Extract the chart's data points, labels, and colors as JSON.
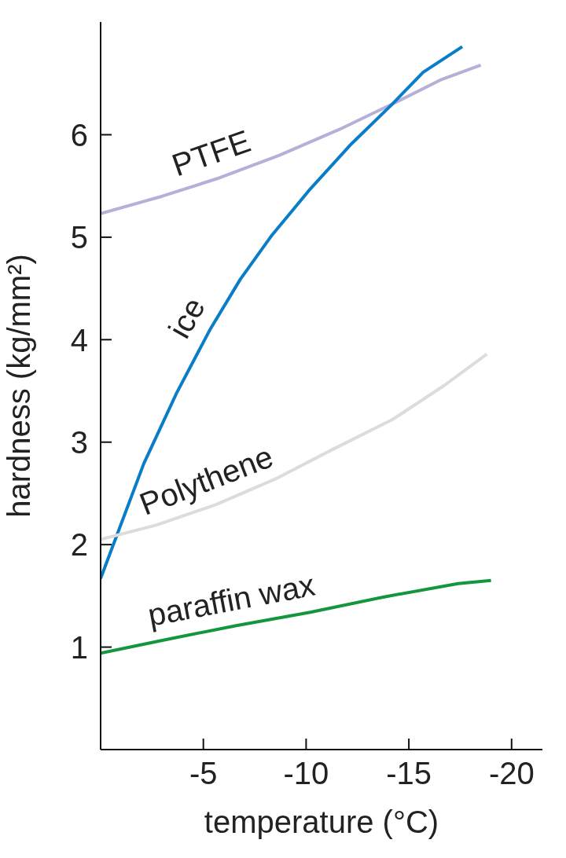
{
  "chart_data": {
    "type": "line",
    "xlabel": "temperature (°C)",
    "ylabel": "hardness (kg/mm²)",
    "xlim": [
      0,
      -21.5
    ],
    "xticks": [
      -5,
      -10,
      -15,
      -20
    ],
    "ylim": [
      0,
      7.1
    ],
    "yticks": [
      1,
      2,
      3,
      4,
      5,
      6
    ],
    "grid": false,
    "legend": false,
    "marker": "none",
    "line_style": "solid",
    "series": [
      {
        "name": "PTFE",
        "color": "#b4b0d8",
        "x": [
          0,
          -3,
          -5.8,
          -8.7,
          -11.6,
          -14.4,
          -16.6,
          -18.5
        ],
        "values": [
          5.23,
          5.4,
          5.58,
          5.8,
          6.05,
          6.32,
          6.54,
          6.68
        ]
      },
      {
        "name": "ice",
        "color": "#0a7dc8",
        "x": [
          0,
          -2.1,
          -3.7,
          -5.3,
          -6.8,
          -8.3,
          -10.2,
          -12.2,
          -14.2,
          -15.7,
          -17.6
        ],
        "values": [
          1.67,
          2.79,
          3.48,
          4.09,
          4.59,
          5.01,
          5.47,
          5.91,
          6.3,
          6.61,
          6.86
        ]
      },
      {
        "name": "Polythene",
        "color": "#dcdcdc",
        "x": [
          0,
          -2.7,
          -5.6,
          -8.5,
          -11.3,
          -14.2,
          -16.7,
          -18.8
        ],
        "values": [
          2.05,
          2.19,
          2.39,
          2.64,
          2.93,
          3.22,
          3.55,
          3.86
        ]
      },
      {
        "name": "paraffin wax",
        "color": "#13963c",
        "x": [
          0,
          -3.1,
          -6.6,
          -10.2,
          -13.8,
          -17.4,
          -19
        ],
        "values": [
          0.94,
          1.07,
          1.21,
          1.34,
          1.49,
          1.62,
          1.65
        ]
      }
    ]
  }
}
